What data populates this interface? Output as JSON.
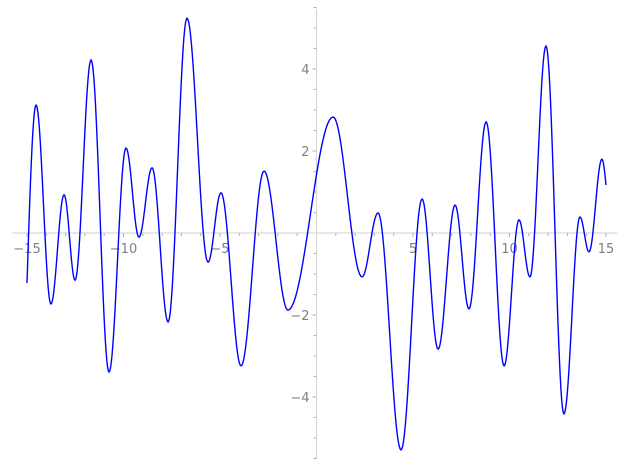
{
  "chart_data": {
    "type": "line",
    "title": "",
    "xlabel": "",
    "ylabel": "",
    "xlim": [
      -15,
      15
    ],
    "ylim": [
      -5.5,
      5.5
    ],
    "grid": false,
    "line_color": "#0000ff",
    "axis_color": "#d9d9d9",
    "tick_label_color": "#808080",
    "x_ticks": [
      -15,
      -10,
      -5,
      5,
      10,
      15
    ],
    "x_tick_labels": [
      "−15",
      "−10",
      "−5",
      "5",
      "10",
      "15"
    ],
    "y_ticks": [
      -4,
      -2,
      2,
      4
    ],
    "y_tick_labels": [
      "−4",
      "−2",
      "2",
      "4"
    ],
    "series": [
      {
        "x": [
          -15,
          -14.53,
          -13.76,
          -13.08,
          -12.51,
          -11.68,
          -10.75,
          -9.87,
          -9.2,
          -8.52,
          -7.69,
          -6.71,
          -5.62,
          -4.95,
          -3.91,
          -2.72,
          -1.48,
          0.86,
          2.36,
          3.19,
          4.38,
          5.47,
          6.3,
          7.18,
          7.9,
          8.79,
          9.72,
          10.49,
          11.06,
          11.89,
          12.82,
          13.65,
          14.12,
          14.79,
          15
        ],
        "y": [
          -1.22,
          3.12,
          -1.73,
          0.93,
          -1.15,
          4.22,
          -3.39,
          2.07,
          -0.1,
          1.59,
          -2.17,
          5.24,
          -0.71,
          0.98,
          -3.24,
          1.51,
          -1.88,
          2.83,
          -1.07,
          0.49,
          -5.29,
          0.83,
          -2.83,
          0.68,
          -1.85,
          2.71,
          -3.24,
          0.32,
          -1.07,
          4.56,
          -4.41,
          0.39,
          -0.46,
          1.8,
          1.17
        ]
      }
    ]
  }
}
